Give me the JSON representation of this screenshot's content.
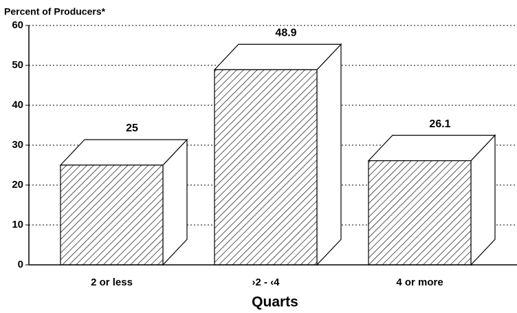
{
  "chart_data": {
    "type": "bar3d",
    "y_label": "Percent of Producers*",
    "x_label": "Quarts",
    "categories": [
      "2 or less",
      "›2 - ‹4",
      "4 or more"
    ],
    "values": [
      25,
      48.9,
      26.1
    ],
    "ylim": [
      0,
      60
    ],
    "yticks": [
      0,
      10,
      20,
      30,
      40,
      50,
      60
    ],
    "grid": true
  }
}
